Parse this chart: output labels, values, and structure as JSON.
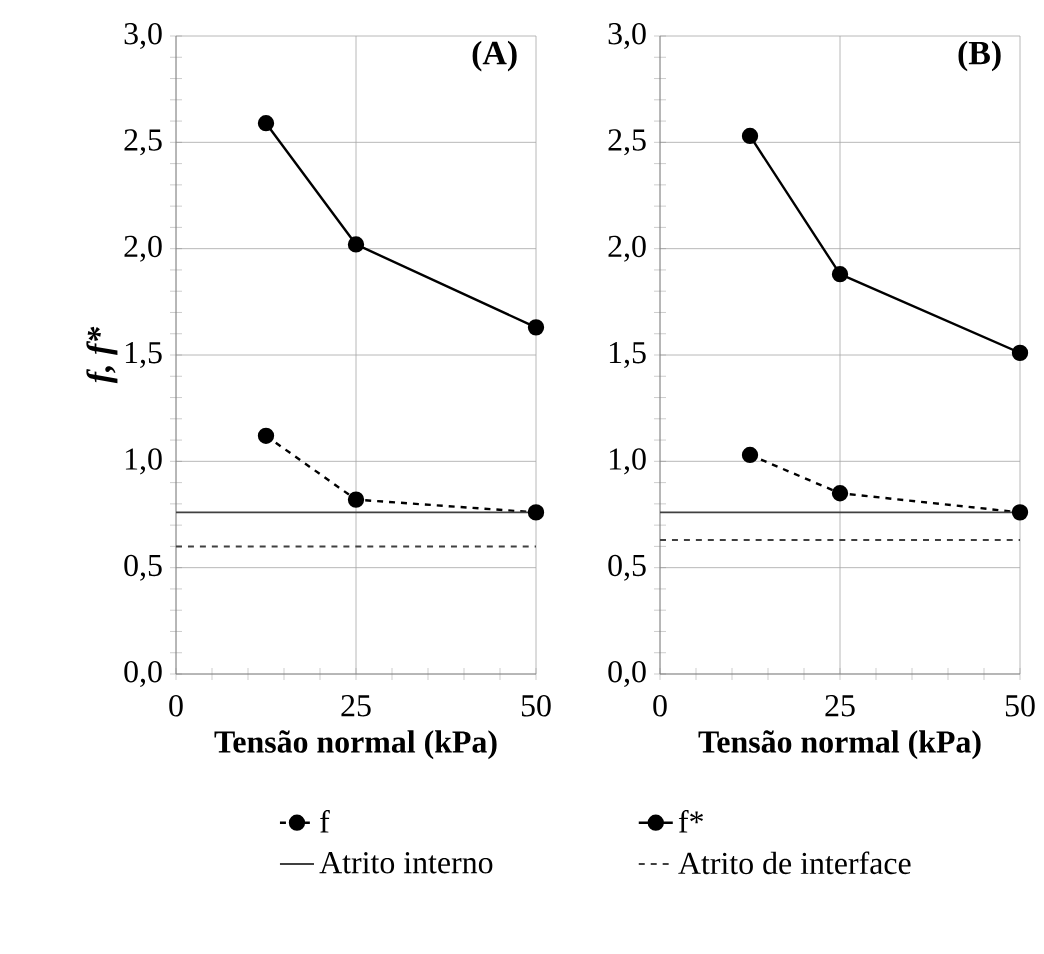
{
  "chart_data": [
    {
      "type": "line",
      "title": "(A)",
      "xlabel": "Tensão normal (kPa)",
      "ylabel": "f, f*",
      "xlim": [
        0,
        50
      ],
      "ylim": [
        0,
        3
      ],
      "xticks": [
        0,
        25,
        50
      ],
      "yticks": [
        {
          "value": 0,
          "label": "0,0"
        },
        {
          "value": 0.5,
          "label": "0,5"
        },
        {
          "value": 1,
          "label": "1,0"
        },
        {
          "value": 1.5,
          "label": "1,5"
        },
        {
          "value": 2,
          "label": "2,0"
        },
        {
          "value": 2.5,
          "label": "2,5"
        },
        {
          "value": 3,
          "label": "3,0"
        }
      ],
      "grid": true,
      "marker": "circle",
      "legend": "bottom",
      "series": [
        {
          "name": "f",
          "color": "#000000",
          "line_style": "dashed",
          "x": [
            12.5,
            25,
            50
          ],
          "values": [
            1.12,
            0.82,
            0.76
          ]
        },
        {
          "name": "f*",
          "color": "#000000",
          "line_style": "solid",
          "x": [
            12.5,
            25,
            50
          ],
          "values": [
            2.59,
            2.02,
            1.63
          ]
        }
      ],
      "ref_lines": [
        {
          "axis": "y",
          "value": 0.76,
          "label": "Atrito interno",
          "color": "#404040",
          "line_style": "solid"
        },
        {
          "axis": "y",
          "value": 0.6,
          "label": "Atrito de interface",
          "color": "#404040",
          "line_style": "dashed"
        }
      ]
    },
    {
      "type": "line",
      "title": "(B)",
      "xlabel": "Tensão normal (kPa)",
      "xlim": [
        0,
        50
      ],
      "ylim": [
        0,
        3
      ],
      "xticks": [
        0,
        25,
        50
      ],
      "yticks": [
        {
          "value": 0,
          "label": "0,0"
        },
        {
          "value": 0.5,
          "label": "0,5"
        },
        {
          "value": 1,
          "label": "1,0"
        },
        {
          "value": 1.5,
          "label": "1,5"
        },
        {
          "value": 2,
          "label": "2,0"
        },
        {
          "value": 2.5,
          "label": "2,5"
        },
        {
          "value": 3,
          "label": "3,0"
        }
      ],
      "grid": true,
      "marker": "circle",
      "series": [
        {
          "color": "#000000",
          "line_style": "dashed",
          "x": [
            12.5,
            25,
            50
          ],
          "values": [
            1.03,
            0.85,
            0.76
          ]
        },
        {
          "color": "#000000",
          "line_style": "solid",
          "x": [
            12.5,
            25,
            50
          ],
          "values": [
            2.53,
            1.88,
            1.51
          ]
        }
      ],
      "ref_lines": [
        {
          "axis": "y",
          "value": 0.76,
          "color": "#404040",
          "line_style": "solid"
        },
        {
          "axis": "y",
          "value": 0.63,
          "color": "#404040",
          "line_style": "dashed"
        }
      ]
    }
  ]
}
